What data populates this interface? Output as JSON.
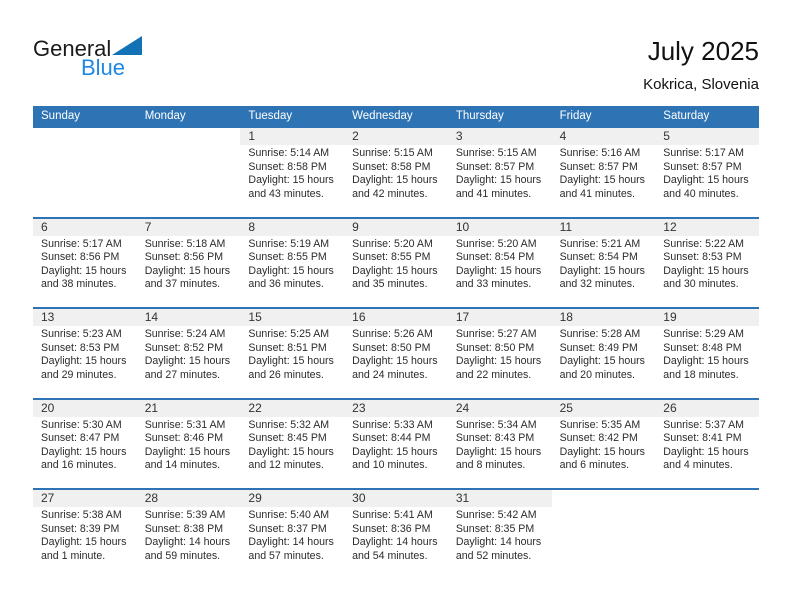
{
  "logo": {
    "text_general": "General",
    "text_blue": "Blue"
  },
  "title": "July 2025",
  "location": "Kokrica, Slovenia",
  "weekdays": [
    "Sunday",
    "Monday",
    "Tuesday",
    "Wednesday",
    "Thursday",
    "Friday",
    "Saturday"
  ],
  "colors": {
    "header_blue": "#2e74b5",
    "band_gray": "#f0f0f0",
    "logo_blue": "#1e88e5",
    "logo_triangle_blue": "#1272b6"
  },
  "weeks": [
    [
      {
        "day": ""
      },
      {
        "day": ""
      },
      {
        "day": "1",
        "sunrise": "Sunrise: 5:14 AM",
        "sunset": "Sunset: 8:58 PM",
        "daylight": "Daylight: 15 hours and 43 minutes."
      },
      {
        "day": "2",
        "sunrise": "Sunrise: 5:15 AM",
        "sunset": "Sunset: 8:58 PM",
        "daylight": "Daylight: 15 hours and 42 minutes."
      },
      {
        "day": "3",
        "sunrise": "Sunrise: 5:15 AM",
        "sunset": "Sunset: 8:57 PM",
        "daylight": "Daylight: 15 hours and 41 minutes."
      },
      {
        "day": "4",
        "sunrise": "Sunrise: 5:16 AM",
        "sunset": "Sunset: 8:57 PM",
        "daylight": "Daylight: 15 hours and 41 minutes."
      },
      {
        "day": "5",
        "sunrise": "Sunrise: 5:17 AM",
        "sunset": "Sunset: 8:57 PM",
        "daylight": "Daylight: 15 hours and 40 minutes."
      }
    ],
    [
      {
        "day": "6",
        "sunrise": "Sunrise: 5:17 AM",
        "sunset": "Sunset: 8:56 PM",
        "daylight": "Daylight: 15 hours and 38 minutes."
      },
      {
        "day": "7",
        "sunrise": "Sunrise: 5:18 AM",
        "sunset": "Sunset: 8:56 PM",
        "daylight": "Daylight: 15 hours and 37 minutes."
      },
      {
        "day": "8",
        "sunrise": "Sunrise: 5:19 AM",
        "sunset": "Sunset: 8:55 PM",
        "daylight": "Daylight: 15 hours and 36 minutes."
      },
      {
        "day": "9",
        "sunrise": "Sunrise: 5:20 AM",
        "sunset": "Sunset: 8:55 PM",
        "daylight": "Daylight: 15 hours and 35 minutes."
      },
      {
        "day": "10",
        "sunrise": "Sunrise: 5:20 AM",
        "sunset": "Sunset: 8:54 PM",
        "daylight": "Daylight: 15 hours and 33 minutes."
      },
      {
        "day": "11",
        "sunrise": "Sunrise: 5:21 AM",
        "sunset": "Sunset: 8:54 PM",
        "daylight": "Daylight: 15 hours and 32 minutes."
      },
      {
        "day": "12",
        "sunrise": "Sunrise: 5:22 AM",
        "sunset": "Sunset: 8:53 PM",
        "daylight": "Daylight: 15 hours and 30 minutes."
      }
    ],
    [
      {
        "day": "13",
        "sunrise": "Sunrise: 5:23 AM",
        "sunset": "Sunset: 8:53 PM",
        "daylight": "Daylight: 15 hours and 29 minutes."
      },
      {
        "day": "14",
        "sunrise": "Sunrise: 5:24 AM",
        "sunset": "Sunset: 8:52 PM",
        "daylight": "Daylight: 15 hours and 27 minutes."
      },
      {
        "day": "15",
        "sunrise": "Sunrise: 5:25 AM",
        "sunset": "Sunset: 8:51 PM",
        "daylight": "Daylight: 15 hours and 26 minutes."
      },
      {
        "day": "16",
        "sunrise": "Sunrise: 5:26 AM",
        "sunset": "Sunset: 8:50 PM",
        "daylight": "Daylight: 15 hours and 24 minutes."
      },
      {
        "day": "17",
        "sunrise": "Sunrise: 5:27 AM",
        "sunset": "Sunset: 8:50 PM",
        "daylight": "Daylight: 15 hours and 22 minutes."
      },
      {
        "day": "18",
        "sunrise": "Sunrise: 5:28 AM",
        "sunset": "Sunset: 8:49 PM",
        "daylight": "Daylight: 15 hours and 20 minutes."
      },
      {
        "day": "19",
        "sunrise": "Sunrise: 5:29 AM",
        "sunset": "Sunset: 8:48 PM",
        "daylight": "Daylight: 15 hours and 18 minutes."
      }
    ],
    [
      {
        "day": "20",
        "sunrise": "Sunrise: 5:30 AM",
        "sunset": "Sunset: 8:47 PM",
        "daylight": "Daylight: 15 hours and 16 minutes."
      },
      {
        "day": "21",
        "sunrise": "Sunrise: 5:31 AM",
        "sunset": "Sunset: 8:46 PM",
        "daylight": "Daylight: 15 hours and 14 minutes."
      },
      {
        "day": "22",
        "sunrise": "Sunrise: 5:32 AM",
        "sunset": "Sunset: 8:45 PM",
        "daylight": "Daylight: 15 hours and 12 minutes."
      },
      {
        "day": "23",
        "sunrise": "Sunrise: 5:33 AM",
        "sunset": "Sunset: 8:44 PM",
        "daylight": "Daylight: 15 hours and 10 minutes."
      },
      {
        "day": "24",
        "sunrise": "Sunrise: 5:34 AM",
        "sunset": "Sunset: 8:43 PM",
        "daylight": "Daylight: 15 hours and 8 minutes."
      },
      {
        "day": "25",
        "sunrise": "Sunrise: 5:35 AM",
        "sunset": "Sunset: 8:42 PM",
        "daylight": "Daylight: 15 hours and 6 minutes."
      },
      {
        "day": "26",
        "sunrise": "Sunrise: 5:37 AM",
        "sunset": "Sunset: 8:41 PM",
        "daylight": "Daylight: 15 hours and 4 minutes."
      }
    ],
    [
      {
        "day": "27",
        "sunrise": "Sunrise: 5:38 AM",
        "sunset": "Sunset: 8:39 PM",
        "daylight": "Daylight: 15 hours and 1 minute."
      },
      {
        "day": "28",
        "sunrise": "Sunrise: 5:39 AM",
        "sunset": "Sunset: 8:38 PM",
        "daylight": "Daylight: 14 hours and 59 minutes."
      },
      {
        "day": "29",
        "sunrise": "Sunrise: 5:40 AM",
        "sunset": "Sunset: 8:37 PM",
        "daylight": "Daylight: 14 hours and 57 minutes."
      },
      {
        "day": "30",
        "sunrise": "Sunrise: 5:41 AM",
        "sunset": "Sunset: 8:36 PM",
        "daylight": "Daylight: 14 hours and 54 minutes."
      },
      {
        "day": "31",
        "sunrise": "Sunrise: 5:42 AM",
        "sunset": "Sunset: 8:35 PM",
        "daylight": "Daylight: 14 hours and 52 minutes."
      },
      {
        "day": ""
      },
      {
        "day": ""
      }
    ]
  ]
}
